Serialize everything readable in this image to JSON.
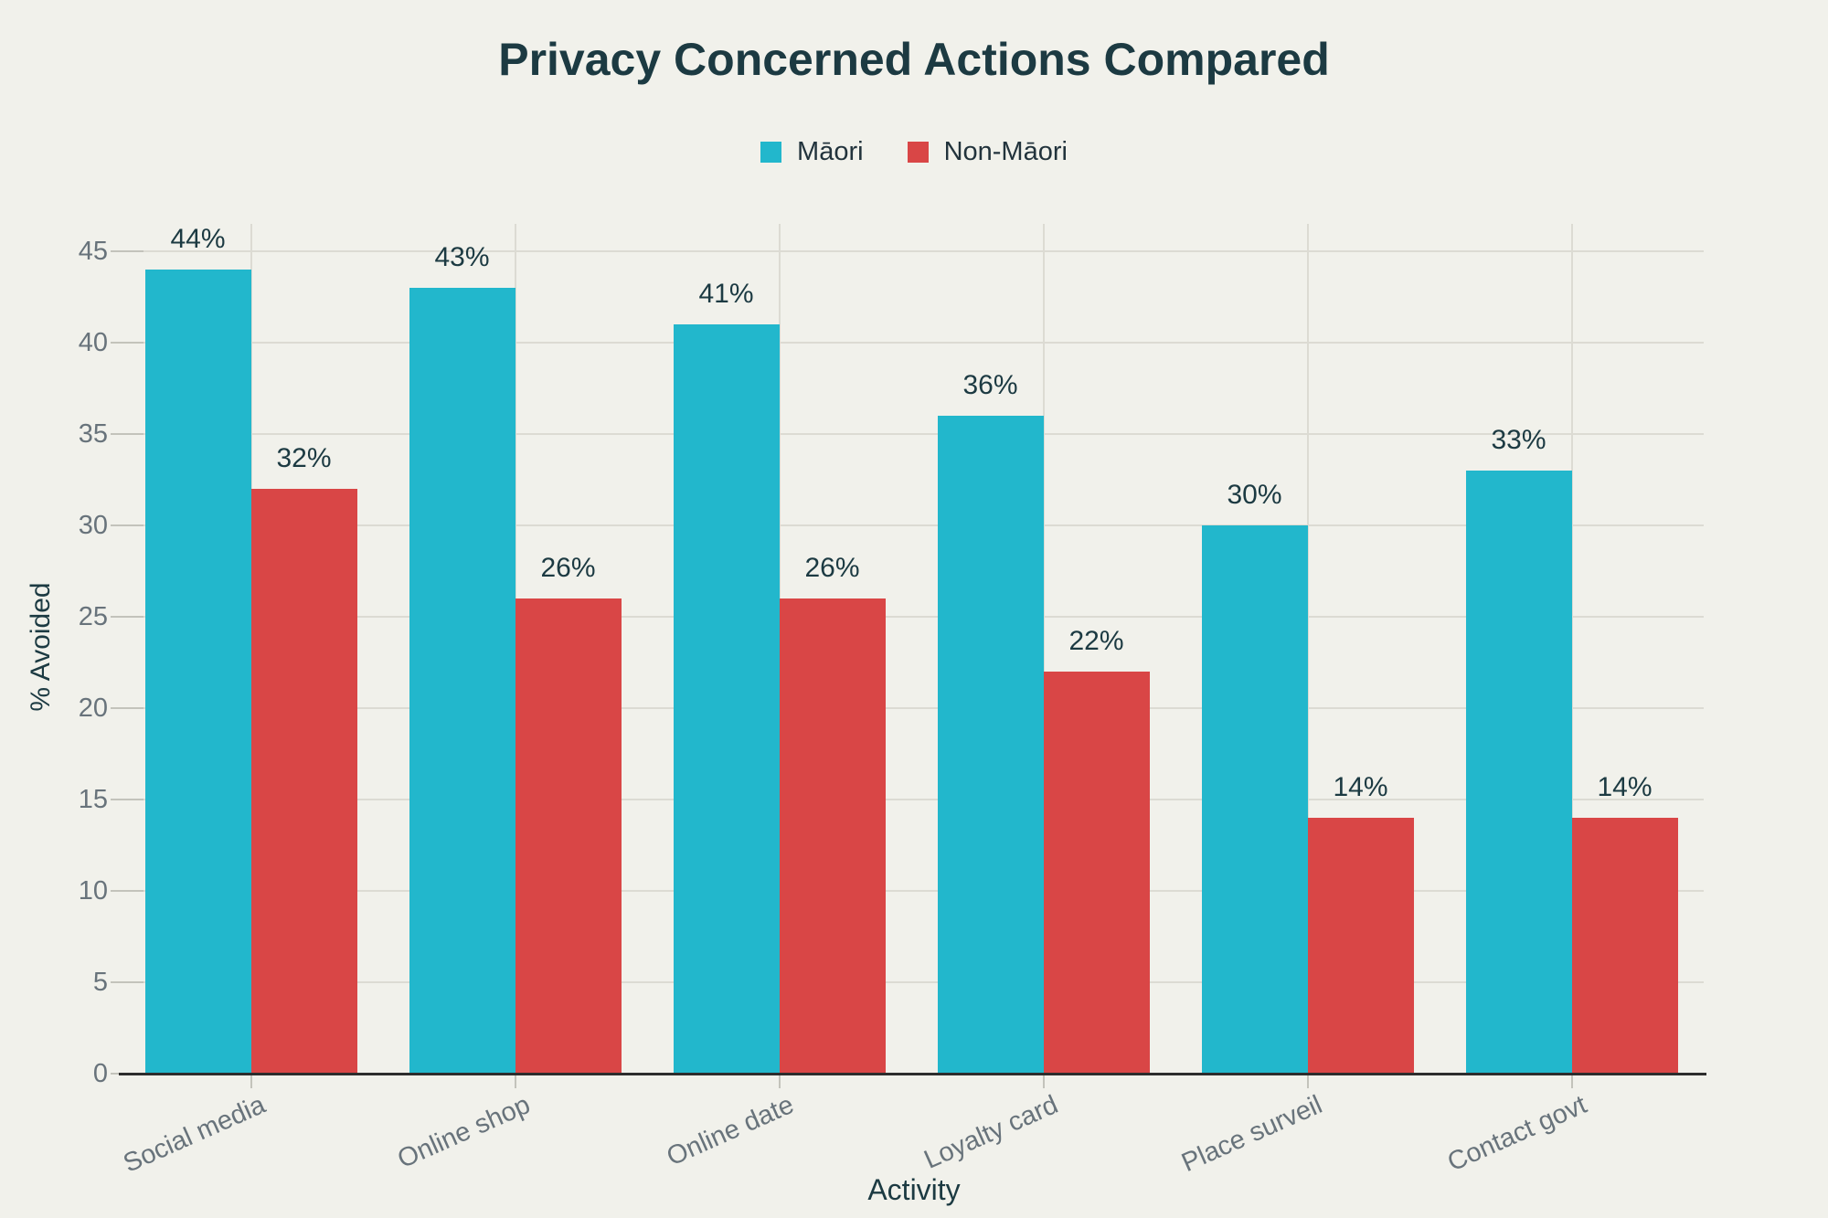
{
  "title": "Privacy Concerned Actions Compared",
  "colors": {
    "background": "#f1f1eb",
    "maori": "#22b7cc",
    "non_maori": "#d94646",
    "title_text": "#1c3a42",
    "tick_text": "#68737b",
    "gridline": "#dcdbd3",
    "axis_line": "#2d2d2d"
  },
  "chart_data": {
    "type": "bar",
    "title": "Privacy Concerned Actions Compared",
    "categories": [
      "Social media",
      "Online shop",
      "Online date",
      "Loyalty card",
      "Place surveil",
      "Contact govt"
    ],
    "series": [
      {
        "name": "Māori",
        "color": "#22b7cc",
        "values": [
          44,
          43,
          41,
          36,
          30,
          33
        ]
      },
      {
        "name": "Non-Māori",
        "color": "#d94646",
        "values": [
          32,
          26,
          26,
          22,
          14,
          14
        ]
      }
    ],
    "xlabel": "Activity",
    "ylabel": "% Avoided",
    "ylim": [
      0,
      45
    ],
    "ytick_step": 5,
    "yticks": [
      0,
      5,
      10,
      15,
      20,
      25,
      30,
      35,
      40,
      45
    ],
    "value_label_format": "{v}%",
    "grid": true,
    "legend_position": "top"
  }
}
